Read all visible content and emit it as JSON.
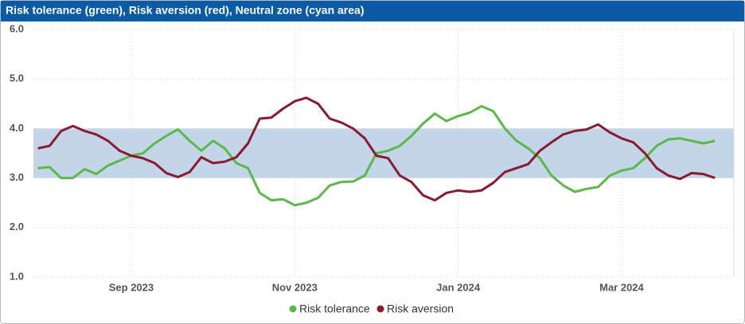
{
  "chart_data": {
    "type": "line",
    "title": "Risk tolerance (green), Risk aversion (red), Neutral zone (cyan area)",
    "categories": [
      null,
      null,
      null,
      null,
      null,
      null,
      null,
      null,
      "Sep 2023",
      null,
      null,
      null,
      null,
      null,
      null,
      null,
      null,
      null,
      null,
      null,
      null,
      null,
      "Nov 2023",
      null,
      null,
      null,
      null,
      null,
      null,
      null,
      null,
      null,
      null,
      null,
      null,
      null,
      "Jan 2024",
      null,
      null,
      null,
      null,
      null,
      null,
      null,
      null,
      null,
      null,
      null,
      null,
      null,
      "Mar 2024",
      null,
      null,
      null,
      null,
      null,
      null,
      null,
      null
    ],
    "series": [
      {
        "name": "Risk tolerance",
        "color": "#5cb849",
        "values": [
          3.2,
          3.22,
          3.0,
          3.0,
          3.18,
          3.08,
          3.25,
          3.35,
          3.45,
          3.5,
          3.7,
          3.85,
          3.98,
          3.75,
          3.55,
          3.75,
          3.6,
          3.3,
          3.2,
          2.7,
          2.55,
          2.57,
          2.45,
          2.5,
          2.6,
          2.85,
          2.92,
          2.93,
          3.05,
          3.5,
          3.55,
          3.65,
          3.85,
          4.1,
          4.3,
          4.15,
          4.25,
          4.32,
          4.45,
          4.35,
          4.0,
          3.75,
          3.6,
          3.4,
          3.05,
          2.85,
          2.72,
          2.78,
          2.82,
          3.05,
          3.15,
          3.2,
          3.4,
          3.65,
          3.78,
          3.8,
          3.75,
          3.7,
          3.75
        ]
      },
      {
        "name": "Risk aversion",
        "color": "#8b1a2e",
        "values": [
          3.6,
          3.65,
          3.95,
          4.05,
          3.95,
          3.88,
          3.75,
          3.55,
          3.45,
          3.4,
          3.3,
          3.1,
          3.02,
          3.12,
          3.42,
          3.3,
          3.33,
          3.42,
          3.7,
          4.2,
          4.22,
          4.4,
          4.55,
          4.62,
          4.5,
          4.2,
          4.12,
          4.0,
          3.8,
          3.45,
          3.4,
          3.05,
          2.92,
          2.65,
          2.55,
          2.7,
          2.75,
          2.72,
          2.75,
          2.9,
          3.12,
          3.2,
          3.28,
          3.55,
          3.72,
          3.88,
          3.95,
          3.98,
          4.08,
          3.92,
          3.8,
          3.72,
          3.5,
          3.2,
          3.05,
          2.98,
          3.1,
          3.08,
          3.0
        ]
      }
    ],
    "neutral_zone": {
      "range": [
        3,
        4
      ],
      "color": "#c3d5e8"
    },
    "ylim": [
      1,
      6
    ],
    "yticks": [
      {
        "value": 1,
        "label": "1.0"
      },
      {
        "value": 2,
        "label": "2.0"
      },
      {
        "value": 3,
        "label": "3.0"
      },
      {
        "value": 4,
        "label": "4.0"
      },
      {
        "value": 5,
        "label": "5.0"
      },
      {
        "value": 6,
        "label": "6.0"
      }
    ],
    "grid": true,
    "legend": "bottom"
  }
}
